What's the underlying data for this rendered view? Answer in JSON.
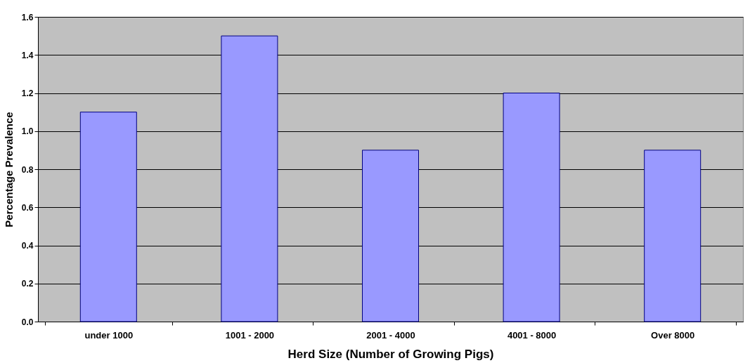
{
  "chart_data": {
    "type": "bar",
    "xlabel": "Herd Size (Number of Growing Pigs)",
    "ylabel": "Percentage Prevalence",
    "categories": [
      "under 1000",
      "1001 - 2000",
      "2001 - 4000",
      "4001 - 8000",
      "Over 8000"
    ],
    "values": [
      1.1,
      1.5,
      0.9,
      1.2,
      0.9
    ],
    "color": "#9999ff",
    "ylim": [
      0,
      1.6
    ],
    "yticks": [
      {
        "value": 0,
        "label": "0.0"
      },
      {
        "value": 0.2,
        "label": "0.2"
      },
      {
        "value": 0.4,
        "label": "0.4"
      },
      {
        "value": 0.6,
        "label": "0.6"
      },
      {
        "value": 0.8,
        "label": "0.8"
      },
      {
        "value": 1.0,
        "label": "1.0"
      },
      {
        "value": 1.2,
        "label": "1.2"
      },
      {
        "value": 1.4,
        "label": "1.4"
      },
      {
        "value": 1.6,
        "label": "1.6"
      }
    ],
    "grid": "y"
  }
}
